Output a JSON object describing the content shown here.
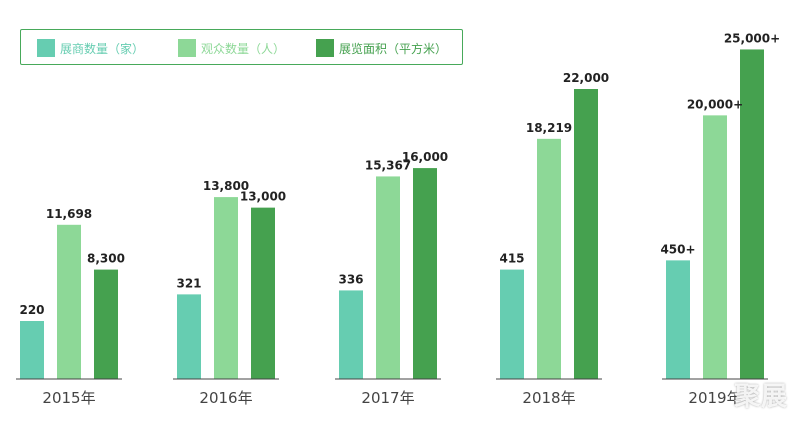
{
  "colors": {
    "exhibitors": "#66cdb1",
    "visitors": "#8dd897",
    "area": "#45a14f",
    "label_text": "#222222",
    "axis": "#444444",
    "legend_border": "#47a95a"
  },
  "legend": [
    {
      "label": "展商数量（家）",
      "color": "#66cdb1",
      "text_color": "#66cdb1"
    },
    {
      "label": "观众数量（人）",
      "color": "#8dd897",
      "text_color": "#8dd897"
    },
    {
      "label": "展览面积（平方米）",
      "color": "#45a14f",
      "text_color": "#45a14f"
    }
  ],
  "watermark": "聚展",
  "chart_data": {
    "type": "bar",
    "categories": [
      "2015年",
      "2016年",
      "2017年",
      "2018年",
      "2019年"
    ],
    "series": [
      {
        "name": "展商数量（家）",
        "values": [
          220,
          321,
          336,
          415,
          450
        ],
        "labels": [
          "220",
          "321",
          "336",
          "415",
          "450+"
        ]
      },
      {
        "name": "观众数量（人）",
        "values": [
          11698,
          13800,
          15367,
          18219,
          20000
        ],
        "labels": [
          "11,698",
          "13,800",
          "15,367",
          "18,219",
          "20,000+"
        ]
      },
      {
        "name": "展览面积（平方米）",
        "values": [
          8300,
          13000,
          16000,
          22000,
          25000
        ],
        "labels": [
          "8,300",
          "13,000",
          "16,000",
          "22,000",
          "25,000+"
        ]
      }
    ],
    "xlabel": "",
    "ylabel": "",
    "y_axis_shown": false,
    "grid": false,
    "legend_position": "top-left"
  }
}
